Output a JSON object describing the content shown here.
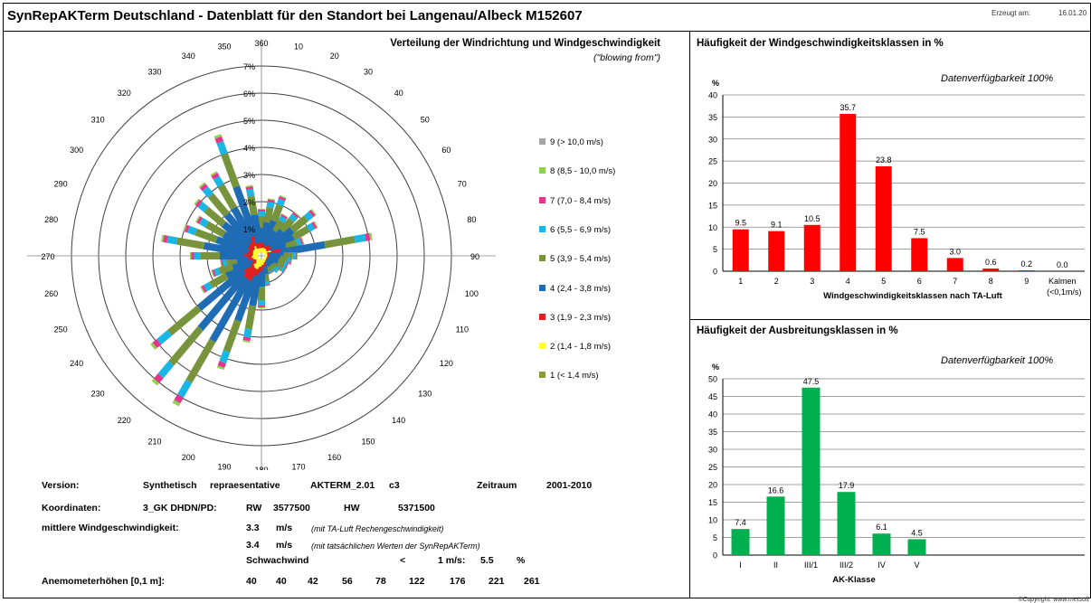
{
  "header": {
    "title": "SynRepAKTerm Deutschland - Datenblatt für den Standort bei Langenau/Albeck M152607",
    "generated_label": "Erzeugt am:",
    "generated_date": "16.01.20"
  },
  "rose": {
    "title": "Verteilung der Windrichtung und Windgeschwindigkeit",
    "subtitle": "(\"blowing from\")",
    "ring_labels": [
      "1%",
      "2%",
      "3%",
      "4%",
      "5%",
      "6%",
      "7%"
    ],
    "direction_labels": [
      "360",
      "10",
      "20",
      "30",
      "40",
      "50",
      "60",
      "70",
      "80",
      "90",
      "100",
      "110",
      "120",
      "130",
      "140",
      "150",
      "160",
      "170",
      "180",
      "190",
      "200",
      "210",
      "220",
      "230",
      "240",
      "250",
      "260",
      "270",
      "280",
      "290",
      "300",
      "310",
      "320",
      "330",
      "340",
      "350"
    ],
    "legend": [
      {
        "label": "9 (> 10,0 m/s)",
        "color": "#a6a6a6"
      },
      {
        "label": "8 (8,5 - 10,0 m/s)",
        "color": "#92d050"
      },
      {
        "label": "7 (7,0 - 8,4 m/s)",
        "color": "#e6338c"
      },
      {
        "label": "6 (5,5 - 6,9 m/s)",
        "color": "#19b7e6"
      },
      {
        "label": "5 (3,9 - 5,4 m/s)",
        "color": "#77933c"
      },
      {
        "label": "4 (2,4 - 3,8 m/s)",
        "color": "#1f6cb5"
      },
      {
        "label": "3 (1,9 - 2,3 m/s)",
        "color": "#e02020"
      },
      {
        "label": "2 (1,4 - 1,8 m/s)",
        "color": "#ffff33"
      },
      {
        "label": "1 (< 1,4 m/s)",
        "color": "#8a9a3a"
      }
    ]
  },
  "info": {
    "version_label": "Version:",
    "version_value1": "Synthetisch",
    "version_value2": "repraesentative",
    "version_value3": "AKTERM_2.01",
    "version_value4": "c3",
    "period_label": "Zeitraum",
    "period_value": "2001-2010",
    "coord_label": "Koordinaten:",
    "coord_system": "3_GK DHDN/PD:",
    "rw_label": "RW",
    "rw_value": "3577500",
    "hw_label": "HW",
    "hw_value": "5371500",
    "mean_label": "mittlere Windgeschwindigkeit:",
    "mean1_value": "3.3",
    "mean1_unit": "m/s",
    "mean1_note": "(mit TA-Luft Rechengeschwindigkeit)",
    "mean2_value": "3.4",
    "mean2_unit": "m/s",
    "mean2_note": "(mit tatsächlichen Werten der SynRepAKTerm)",
    "calm_label": "Schwachwind",
    "calm_op": "<",
    "calm_threshold": "1 m/s:",
    "calm_value": "5.5",
    "calm_unit": "%",
    "anemo_label": "Anemometerhöhen [0,1 m]:",
    "anemo_values": [
      "40",
      "40",
      "42",
      "56",
      "78",
      "122",
      "176",
      "221",
      "261"
    ]
  },
  "footer": {
    "copyright": "©Copyright: www.metsoft"
  },
  "chart_data": [
    {
      "type": "bar",
      "title": "Häufigkeit der Windgeschwindigkeitsklassen in %",
      "availability": "Datenverfügbarkeit  100%",
      "ylabel": "%",
      "xlabel": "Windgeschwindigkeitsklassen nach TA-Luft",
      "categories": [
        "1",
        "2",
        "3",
        "4",
        "5",
        "6",
        "7",
        "8",
        "9",
        "Kalmen"
      ],
      "extra_label": "(<0,1m/s)",
      "values": [
        9.5,
        9.1,
        10.5,
        35.7,
        23.8,
        7.5,
        3.0,
        0.6,
        0.2,
        0.0
      ],
      "value_labels": [
        "9.5",
        "9.1",
        "10.5",
        "35.7",
        "23.8",
        "7.5",
        "3.0",
        "0.6",
        "0.2",
        "0.0"
      ],
      "yticks": [
        "0",
        "5",
        "10",
        "15",
        "20",
        "25",
        "30",
        "35",
        "40"
      ],
      "ylim": [
        0,
        40
      ],
      "color": "#ff0000",
      "grid": true
    },
    {
      "type": "bar",
      "title": "Häufigkeit der Ausbreitungsklassen in %",
      "availability": "Datenverfügbarkeit  100%",
      "ylabel": "%",
      "xlabel": "AK-Klasse",
      "categories": [
        "I",
        "II",
        "III/1",
        "III/2",
        "IV",
        "V"
      ],
      "values": [
        7.4,
        16.6,
        47.5,
        17.9,
        6.1,
        4.5
      ],
      "value_labels": [
        "7.4",
        "16.6",
        "47.5",
        "17.9",
        "6.1",
        "4.5"
      ],
      "yticks": [
        "0",
        "5",
        "10",
        "15",
        "20",
        "25",
        "30",
        "35",
        "40",
        "45",
        "50"
      ],
      "ylim": [
        0,
        50
      ],
      "color": "#00b050",
      "grid": true
    }
  ]
}
